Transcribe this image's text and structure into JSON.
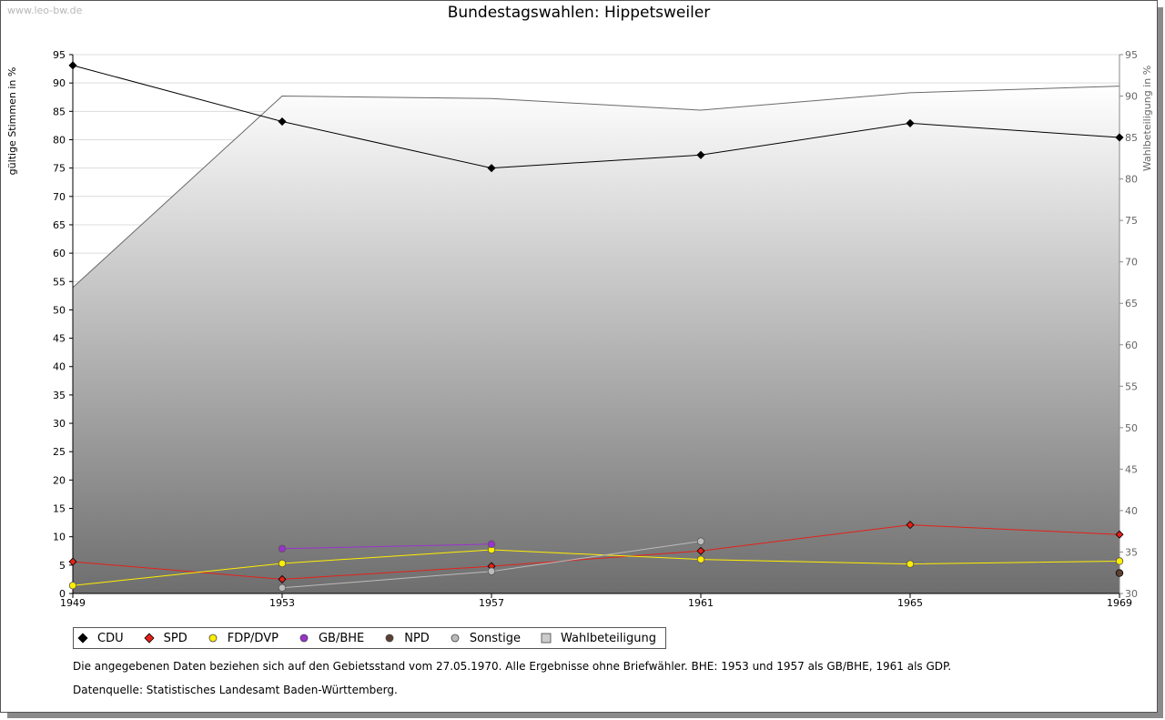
{
  "watermark": "www.leo-bw.de",
  "chart_data": {
    "type": "line",
    "title": "Bundestagswahlen: Hippetsweiler",
    "ylabel": "gültige Stimmen in %",
    "y2label": "Wahlbeteiligung in %",
    "ylim": [
      0,
      95
    ],
    "y2lim": [
      30,
      95
    ],
    "yticks": [
      0,
      5,
      10,
      15,
      20,
      25,
      30,
      35,
      40,
      45,
      50,
      55,
      60,
      65,
      70,
      75,
      80,
      85,
      90,
      95
    ],
    "y2ticks": [
      30,
      35,
      40,
      45,
      50,
      55,
      60,
      65,
      70,
      75,
      80,
      85,
      90,
      95
    ],
    "categories": [
      "1949",
      "1953",
      "1957",
      "1961",
      "1965",
      "1969"
    ],
    "series": [
      {
        "name": "CDU",
        "color": "#000000",
        "values": [
          93.1,
          83.2,
          75.0,
          77.3,
          82.9,
          80.4
        ]
      },
      {
        "name": "SPD",
        "color": "#e32119",
        "values": [
          5.6,
          2.5,
          4.8,
          7.5,
          12.1,
          10.4
        ]
      },
      {
        "name": "FDP/DVP",
        "color": "#ffee00",
        "values": [
          1.4,
          5.3,
          7.7,
          6.0,
          5.2,
          5.7
        ]
      },
      {
        "name": "GB/BHE",
        "color": "#9933cc",
        "values": [
          null,
          7.9,
          8.7,
          null,
          null,
          null
        ]
      },
      {
        "name": "NPD",
        "color": "#5c4033",
        "values": [
          null,
          null,
          null,
          null,
          null,
          3.6
        ]
      },
      {
        "name": "Sonstige",
        "color": "#bbbbbb",
        "values": [
          null,
          1.0,
          3.9,
          9.2,
          null,
          null
        ]
      }
    ],
    "turnout": {
      "name": "Wahlbeteiligung",
      "color": "#cccccc",
      "values": [
        66.9,
        90.0,
        89.7,
        88.3,
        90.4,
        91.2
      ]
    }
  },
  "footnotes": {
    "line1": "Die angegebenen Daten beziehen sich auf den Gebietsstand vom 27.05.1970. Alle Ergebnisse ohne Briefwähler. BHE: 1953 und 1957 als GB/BHE, 1961 als GDP.",
    "line2": "Datenquelle: Statistisches Landesamt Baden-Württemberg."
  }
}
